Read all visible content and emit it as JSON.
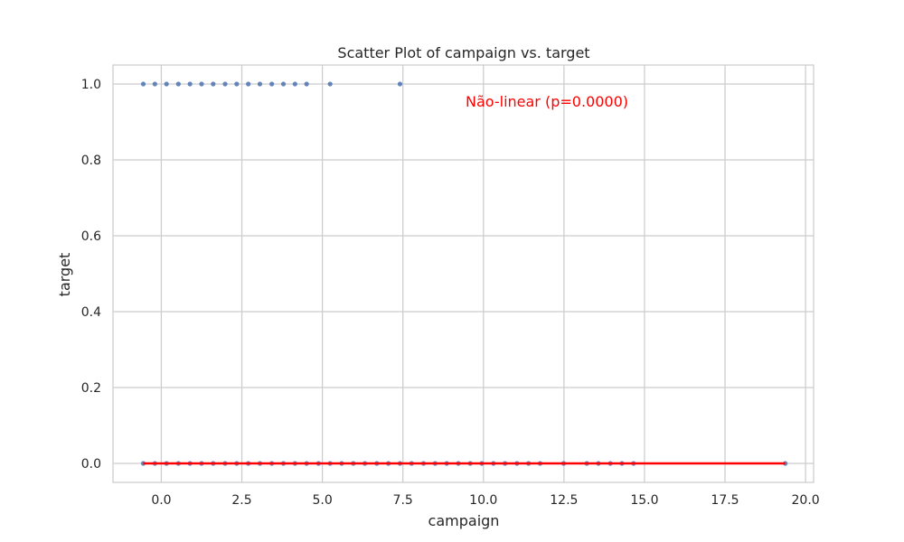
{
  "chart_data": {
    "type": "scatter",
    "title": "Scatter Plot of campaign vs. target",
    "xlabel": "campaign",
    "ylabel": "target",
    "xlim": [
      -1.5,
      20.25
    ],
    "ylim": [
      -0.05,
      1.05
    ],
    "xticks": [
      "0.0",
      "2.5",
      "5.0",
      "7.5",
      "10.0",
      "12.5",
      "15.0",
      "17.5",
      "20.0"
    ],
    "yticks": [
      "0.0",
      "0.2",
      "0.4",
      "0.6",
      "0.8",
      "1.0"
    ],
    "grid": true,
    "annotation": "Não-linear (p=0.0000)",
    "colors": {
      "points": "#4c72b0",
      "fit_line": "#ff0000",
      "annotation": "#ff0000",
      "grid": "#cccccc"
    },
    "series": [
      {
        "x": [
          -0.56,
          -0.2,
          0.16,
          0.53,
          0.89,
          1.25,
          1.61,
          1.98,
          2.34,
          2.7,
          3.06,
          3.43,
          3.79,
          4.15,
          4.51,
          4.88,
          5.24,
          5.6,
          5.96,
          6.32,
          6.69,
          7.05,
          7.41,
          7.77,
          8.14,
          8.5,
          8.86,
          9.22,
          9.59,
          9.95,
          10.31,
          10.67,
          11.04,
          11.4,
          11.76,
          12.49,
          13.21,
          13.57,
          13.94,
          14.3,
          14.66,
          19.37
        ],
        "y": [
          0,
          0,
          0,
          0,
          0,
          0,
          0,
          0,
          0,
          0,
          0,
          0,
          0,
          0,
          0,
          0,
          0,
          0,
          0,
          0,
          0,
          0,
          0,
          0,
          0,
          0,
          0,
          0,
          0,
          0,
          0,
          0,
          0,
          0,
          0,
          0,
          0,
          0,
          0,
          0,
          0,
          0
        ]
      },
      {
        "x": [
          -0.56,
          -0.2,
          0.16,
          0.53,
          0.89,
          1.25,
          1.61,
          1.98,
          2.34,
          2.7,
          3.06,
          3.43,
          3.79,
          4.15,
          4.51,
          5.24,
          7.41
        ],
        "y": [
          1,
          1,
          1,
          1,
          1,
          1,
          1,
          1,
          1,
          1,
          1,
          1,
          1,
          1,
          1,
          1,
          1
        ]
      }
    ],
    "fit_line": {
      "x": [
        -0.56,
        19.37
      ],
      "y": [
        0,
        0
      ]
    }
  }
}
